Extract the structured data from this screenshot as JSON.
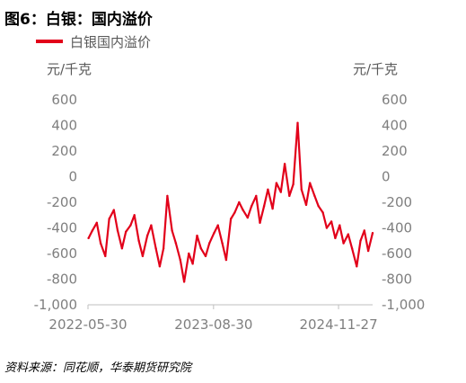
{
  "figure": {
    "title": "图6：白银：国内溢价",
    "source": "资料来源：同花顺，华泰期货研究院"
  },
  "chart_data": {
    "type": "line",
    "title": "",
    "legend": [
      "白银国内溢价"
    ],
    "legend_position": "top-left",
    "unit_left": "元/千克",
    "unit_right": "元/千克",
    "xlabel": "",
    "ylabel": "",
    "grid": false,
    "colors": {
      "series": "#E2001A",
      "axis": "#bfbfbf",
      "tick_text": "#7f7f7f"
    },
    "ylim": [
      -1000,
      600
    ],
    "y_ticks": [
      600,
      400,
      200,
      0,
      -200,
      -400,
      -600,
      -800,
      -1000
    ],
    "y_tick_labels": [
      "600",
      "400",
      "200",
      "0",
      "-200",
      "-400",
      "-600",
      "-800",
      "-1,000"
    ],
    "x_ticks": [
      "2022-05-30",
      "2023-08-30",
      "2024-11-27"
    ],
    "x_range": [
      "2022-05-30",
      "2025-03-31"
    ],
    "series": [
      {
        "name": "白银国内溢价",
        "points": [
          [
            "2022-06-01",
            -480
          ],
          [
            "2022-06-15",
            -420
          ],
          [
            "2022-07-01",
            -360
          ],
          [
            "2022-07-15",
            -520
          ],
          [
            "2022-08-01",
            -620
          ],
          [
            "2022-08-15",
            -330
          ],
          [
            "2022-09-01",
            -260
          ],
          [
            "2022-09-15",
            -420
          ],
          [
            "2022-10-01",
            -560
          ],
          [
            "2022-10-15",
            -430
          ],
          [
            "2022-11-01",
            -380
          ],
          [
            "2022-11-15",
            -300
          ],
          [
            "2022-12-01",
            -500
          ],
          [
            "2022-12-15",
            -620
          ],
          [
            "2023-01-01",
            -460
          ],
          [
            "2023-01-15",
            -380
          ],
          [
            "2023-02-01",
            -560
          ],
          [
            "2023-02-15",
            -700
          ],
          [
            "2023-03-01",
            -560
          ],
          [
            "2023-03-15",
            -150
          ],
          [
            "2023-04-01",
            -420
          ],
          [
            "2023-04-15",
            -520
          ],
          [
            "2023-05-01",
            -650
          ],
          [
            "2023-05-15",
            -820
          ],
          [
            "2023-06-01",
            -600
          ],
          [
            "2023-06-15",
            -680
          ],
          [
            "2023-07-01",
            -460
          ],
          [
            "2023-07-15",
            -560
          ],
          [
            "2023-08-01",
            -620
          ],
          [
            "2023-08-15",
            -520
          ],
          [
            "2023-09-01",
            -440
          ],
          [
            "2023-09-15",
            -380
          ],
          [
            "2023-10-01",
            -520
          ],
          [
            "2023-10-15",
            -650
          ],
          [
            "2023-11-01",
            -330
          ],
          [
            "2023-11-15",
            -280
          ],
          [
            "2023-12-01",
            -200
          ],
          [
            "2023-12-15",
            -260
          ],
          [
            "2024-01-01",
            -320
          ],
          [
            "2024-01-15",
            -230
          ],
          [
            "2024-02-01",
            -150
          ],
          [
            "2024-02-15",
            -360
          ],
          [
            "2024-03-01",
            -230
          ],
          [
            "2024-03-15",
            -100
          ],
          [
            "2024-04-01",
            -250
          ],
          [
            "2024-04-15",
            -50
          ],
          [
            "2024-05-01",
            -120
          ],
          [
            "2024-05-15",
            100
          ],
          [
            "2024-06-01",
            -150
          ],
          [
            "2024-06-15",
            -60
          ],
          [
            "2024-07-01",
            420
          ],
          [
            "2024-07-15",
            -100
          ],
          [
            "2024-08-01",
            -220
          ],
          [
            "2024-08-15",
            -50
          ],
          [
            "2024-09-01",
            -150
          ],
          [
            "2024-09-15",
            -230
          ],
          [
            "2024-10-01",
            -280
          ],
          [
            "2024-10-15",
            -400
          ],
          [
            "2024-11-01",
            -350
          ],
          [
            "2024-11-15",
            -480
          ],
          [
            "2024-12-01",
            -380
          ],
          [
            "2024-12-15",
            -520
          ],
          [
            "2025-01-01",
            -450
          ],
          [
            "2025-01-15",
            -560
          ],
          [
            "2025-02-01",
            -700
          ],
          [
            "2025-02-15",
            -500
          ],
          [
            "2025-03-01",
            -420
          ],
          [
            "2025-03-15",
            -580
          ],
          [
            "2025-03-31",
            -440
          ]
        ]
      }
    ]
  }
}
